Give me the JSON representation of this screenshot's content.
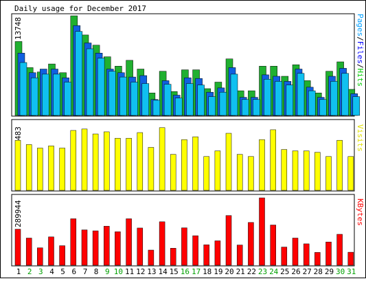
{
  "chart_data": [
    {
      "type": "bar",
      "title": "Daily usage for December 2017",
      "ylabel_parts": [
        {
          "text": "Pages",
          "color": "#00a0ff"
        },
        {
          "text": "/",
          "color": "#000000"
        },
        {
          "text": "Files",
          "color": "#0000ff"
        },
        {
          "text": "/",
          "color": "#000000"
        },
        {
          "text": "Hits",
          "color": "#00cc00"
        }
      ],
      "ymax_label": "13748",
      "ymax": 13748,
      "categories": [
        "1",
        "2",
        "3",
        "4",
        "5",
        "6",
        "7",
        "8",
        "9",
        "10",
        "11",
        "12",
        "13",
        "14",
        "15",
        "16",
        "17",
        "18",
        "19",
        "20",
        "21",
        "22",
        "23",
        "24",
        "25",
        "26",
        "27",
        "28",
        "29",
        "30",
        "31"
      ],
      "weekend_days": [
        "2",
        "3",
        "9",
        "10",
        "16",
        "17",
        "23",
        "24",
        "30",
        "31"
      ],
      "series": [
        {
          "name": "Hits",
          "color": "#20b030",
          "values": [
            10200,
            6600,
            6000,
            7100,
            5900,
            13748,
            11100,
            9700,
            8100,
            6800,
            7600,
            6400,
            3100,
            6100,
            3300,
            6300,
            6300,
            3700,
            4600,
            7800,
            3400,
            3400,
            6800,
            6800,
            5400,
            7000,
            4800,
            3100,
            6100,
            7400,
            3600
          ]
        },
        {
          "name": "Files",
          "color": "#1060e0",
          "values": [
            8600,
            5900,
            6400,
            6400,
            5200,
            12400,
            10000,
            8600,
            6400,
            5900,
            5300,
            5500,
            2200,
            4800,
            2800,
            5200,
            5100,
            3200,
            3800,
            6600,
            2500,
            2500,
            5600,
            5400,
            4700,
            6400,
            3900,
            2500,
            5400,
            6500,
            3000
          ]
        },
        {
          "name": "Pages",
          "color": "#10c0f0",
          "values": [
            7300,
            5200,
            5700,
            5700,
            4600,
            11600,
            9200,
            7900,
            6100,
            5300,
            4600,
            4400,
            2100,
            4300,
            2400,
            4400,
            4200,
            2600,
            3200,
            5700,
            2200,
            2200,
            5000,
            4700,
            4200,
            5800,
            3400,
            2200,
            4700,
            5800,
            2600
          ]
        }
      ]
    },
    {
      "type": "bar",
      "ylabel": "Visits",
      "ylabel_color": "#e0e000",
      "ymax_label": "483",
      "ymax": 483,
      "series": [
        {
          "name": "Visits",
          "color": "#ffff00",
          "values": [
            355,
            325,
            300,
            315,
            300,
            425,
            435,
            400,
            415,
            370,
            370,
            410,
            305,
            445,
            255,
            360,
            380,
            240,
            280,
            405,
            255,
            240,
            360,
            430,
            290,
            280,
            280,
            270,
            240,
            355,
            240
          ]
        }
      ]
    },
    {
      "type": "bar",
      "ylabel": "KBytes",
      "ylabel_color": "#ff0000",
      "ymax_label": "289944",
      "ymax": 289944,
      "series": [
        {
          "name": "KBytes",
          "color": "#ff0000",
          "values": [
            155000,
            117000,
            75000,
            122000,
            84000,
            200000,
            152000,
            148000,
            168000,
            144000,
            200000,
            160000,
            65000,
            187000,
            73000,
            161000,
            127000,
            88000,
            105000,
            214000,
            87000,
            184000,
            289944,
            173000,
            78000,
            117000,
            92000,
            55000,
            100000,
            133000,
            56000
          ]
        }
      ]
    }
  ]
}
